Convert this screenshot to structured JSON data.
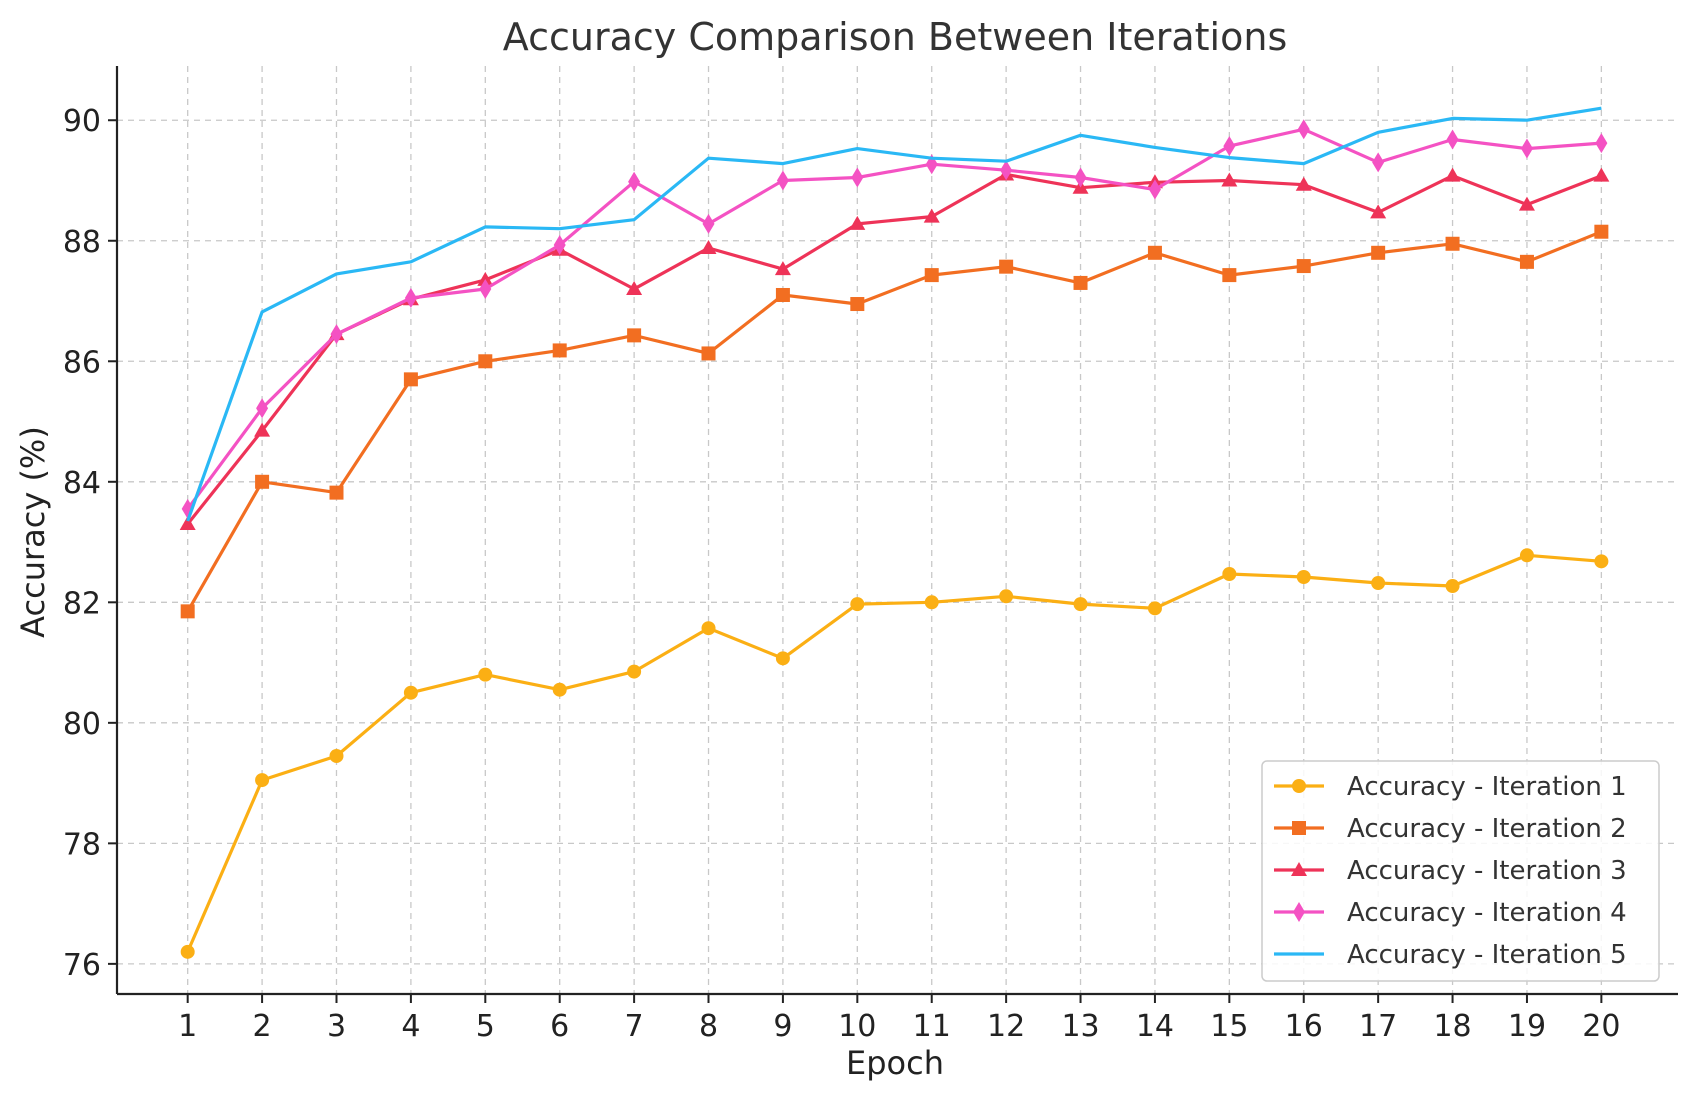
{
  "chart_data": {
    "type": "line",
    "title": "Accuracy Comparison Between Iterations",
    "xlabel": "Epoch",
    "ylabel": "Accuracy (%)",
    "x": [
      1,
      2,
      3,
      4,
      5,
      6,
      7,
      8,
      9,
      10,
      11,
      12,
      13,
      14,
      15,
      16,
      17,
      18,
      19,
      20
    ],
    "xlim": [
      0.05,
      21.03
    ],
    "ylim": [
      75.5,
      90.9
    ],
    "yticks": [
      76,
      78,
      80,
      82,
      84,
      86,
      88,
      90
    ],
    "grid": true,
    "legend_position": "lower-right",
    "series": [
      {
        "name": "Accuracy - Iteration 1",
        "color": "#FBAF14",
        "marker": "circle",
        "values": [
          76.2,
          79.05,
          79.45,
          80.5,
          80.8,
          80.55,
          80.85,
          81.57,
          81.07,
          81.97,
          82.0,
          82.1,
          81.97,
          81.9,
          82.47,
          82.42,
          82.32,
          82.27,
          82.78,
          82.68
        ]
      },
      {
        "name": "Accuracy - Iteration 2",
        "color": "#F26E21",
        "marker": "square",
        "values": [
          81.85,
          84.0,
          83.82,
          85.7,
          86.0,
          86.18,
          86.43,
          86.13,
          87.1,
          86.95,
          87.43,
          87.57,
          87.3,
          87.8,
          87.43,
          87.58,
          87.8,
          87.95,
          87.65,
          88.15
        ]
      },
      {
        "name": "Accuracy - Iteration 3",
        "color": "#EE3358",
        "marker": "triangle",
        "values": [
          83.3,
          84.85,
          86.45,
          87.03,
          87.35,
          87.85,
          87.2,
          87.88,
          87.53,
          88.28,
          88.4,
          89.1,
          88.88,
          88.97,
          89.0,
          88.93,
          88.47,
          89.08,
          88.6,
          89.08
        ]
      },
      {
        "name": "Accuracy - Iteration 4",
        "color": "#F452C3",
        "marker": "diamond",
        "values": [
          83.55,
          85.22,
          86.45,
          87.05,
          87.2,
          87.93,
          88.98,
          88.28,
          89.0,
          89.05,
          89.27,
          89.17,
          89.05,
          88.85,
          89.57,
          89.85,
          89.3,
          89.68,
          89.53,
          89.62
        ]
      },
      {
        "name": "Accuracy - Iteration 5",
        "color": "#2AB8F5",
        "marker": "none",
        "values": [
          83.35,
          86.82,
          87.45,
          87.65,
          88.23,
          88.2,
          88.35,
          89.37,
          89.28,
          89.53,
          89.37,
          89.32,
          89.75,
          89.55,
          89.38,
          89.28,
          89.8,
          90.03,
          90.0,
          90.2
        ]
      }
    ]
  }
}
